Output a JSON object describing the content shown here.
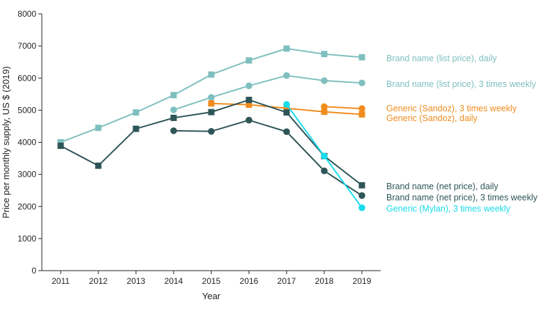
{
  "chart_data": {
    "type": "line",
    "title": "",
    "xlabel": "Year",
    "ylabel": "Price per monthly supply, US $ (2019)",
    "x": [
      2011,
      2012,
      2013,
      2014,
      2015,
      2016,
      2017,
      2018,
      2019
    ],
    "xticks": [
      "2011",
      "2012",
      "2013",
      "2014",
      "2015",
      "2016",
      "2017",
      "2018",
      "2019"
    ],
    "ylim": [
      0,
      8000
    ],
    "yticks": [
      "0",
      "1000",
      "2000",
      "3000",
      "4000",
      "5000",
      "6000",
      "7000",
      "8000"
    ],
    "grid": false,
    "series": [
      {
        "name": "Brand name (list price), daily",
        "color": "#7fbfbf",
        "marker": "square",
        "x": [
          2011,
          2012,
          2013,
          2014,
          2015,
          2016,
          2017,
          2018,
          2019
        ],
        "values": [
          4000,
          4450,
          4930,
          5470,
          6110,
          6550,
          6920,
          6750,
          6650
        ]
      },
      {
        "name": "Brand name (list price), 3 times weekly",
        "color": "#7fbfbf",
        "marker": "circle",
        "x": [
          2014,
          2015,
          2016,
          2017,
          2018,
          2019
        ],
        "values": [
          5010,
          5400,
          5760,
          6080,
          5920,
          5850
        ]
      },
      {
        "name": "Generic (Sandoz), 3 times weekly",
        "color": "#f08c1e",
        "marker": "circle",
        "x": [
          2018,
          2019
        ],
        "values": [
          5110,
          5050
        ]
      },
      {
        "name": "Generic (Sandoz), daily",
        "color": "#f08c1e",
        "marker": "square",
        "x": [
          2015,
          2016,
          2017,
          2018,
          2019
        ],
        "values": [
          5210,
          5170,
          5060,
          4950,
          4870
        ]
      },
      {
        "name": "Brand name (net price), daily",
        "color": "#2e5557",
        "marker": "square",
        "x": [
          2011,
          2012,
          2013,
          2014,
          2015,
          2016,
          2017,
          2018,
          2019
        ],
        "values": [
          3890,
          3270,
          4420,
          4760,
          4940,
          5320,
          4930,
          3570,
          2660
        ]
      },
      {
        "name": "Brand name (net price), 3 times weekly",
        "color": "#2e5557",
        "marker": "circle",
        "x": [
          2014,
          2015,
          2016,
          2017,
          2018,
          2019
        ],
        "values": [
          4360,
          4340,
          4690,
          4330,
          3110,
          2340
        ]
      },
      {
        "name": "Generic (Mylan), 3 times weekly",
        "color": "#19dcec",
        "marker": "circle",
        "x": [
          2017,
          2018,
          2019
        ],
        "values": [
          5180,
          3570,
          1960
        ]
      }
    ]
  }
}
